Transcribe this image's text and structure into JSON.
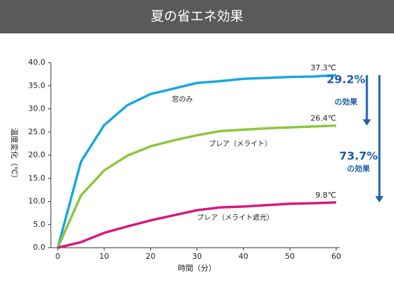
{
  "chart_data": {
    "type": "line",
    "title": "夏の省エネ効果",
    "x_label": "時間（分）",
    "y_label": "温度変化（℃）",
    "x": [
      0,
      5,
      10,
      15,
      20,
      25,
      30,
      35,
      40,
      45,
      50,
      55,
      60
    ],
    "series": [
      {
        "name": "窓のみ",
        "color": "#1aa7e0",
        "values": [
          0,
          18.6,
          26.5,
          30.8,
          33.2,
          34.4,
          35.6,
          36.0,
          36.5,
          36.7,
          36.9,
          37.0,
          37.3
        ],
        "value_labels": [
          null,
          null,
          null,
          null,
          null,
          null,
          null,
          null,
          null,
          null,
          null,
          null,
          "37.3℃"
        ]
      },
      {
        "name": "プレア（メライト）",
        "color": "#8cc63f",
        "values": [
          0,
          11.3,
          16.7,
          19.9,
          21.9,
          23.2,
          24.3,
          25.2,
          25.5,
          25.8,
          26.0,
          26.2,
          26.4
        ],
        "value_labels": [
          null,
          null,
          null,
          null,
          null,
          null,
          null,
          null,
          null,
          null,
          null,
          null,
          "26.4℃"
        ]
      },
      {
        "name": "プレア（メライト遮光）",
        "color": "#d6197f",
        "values": [
          0,
          1.2,
          3.2,
          4.6,
          5.9,
          7.0,
          8.1,
          8.7,
          8.9,
          9.2,
          9.5,
          9.6,
          9.8
        ],
        "value_labels": [
          null,
          null,
          null,
          null,
          null,
          null,
          null,
          null,
          null,
          null,
          null,
          null,
          "9.8℃"
        ]
      }
    ],
    "xlim": [
      0,
      60
    ],
    "xticks": [
      0,
      10,
      20,
      30,
      40,
      50,
      60
    ],
    "ylim": [
      0,
      40
    ],
    "yticks": [
      {
        "value": 0,
        "label": "0.0"
      },
      {
        "value": 5,
        "label": "5.0"
      },
      {
        "value": 10,
        "label": "10.0"
      },
      {
        "value": 15,
        "label": "15.0"
      },
      {
        "value": 20,
        "label": "20.0"
      },
      {
        "value": 25,
        "label": "25.0"
      },
      {
        "value": 30,
        "label": "30.0"
      },
      {
        "value": 35,
        "label": "35.0"
      },
      {
        "value": 40,
        "label": "40.0"
      }
    ],
    "grid": false,
    "annotations": [
      {
        "text": "29.2%",
        "sub": "の効果",
        "color": "#1f5ea8"
      },
      {
        "text": "73.7%",
        "sub": "の効果",
        "color": "#1f5ea8"
      }
    ]
  }
}
